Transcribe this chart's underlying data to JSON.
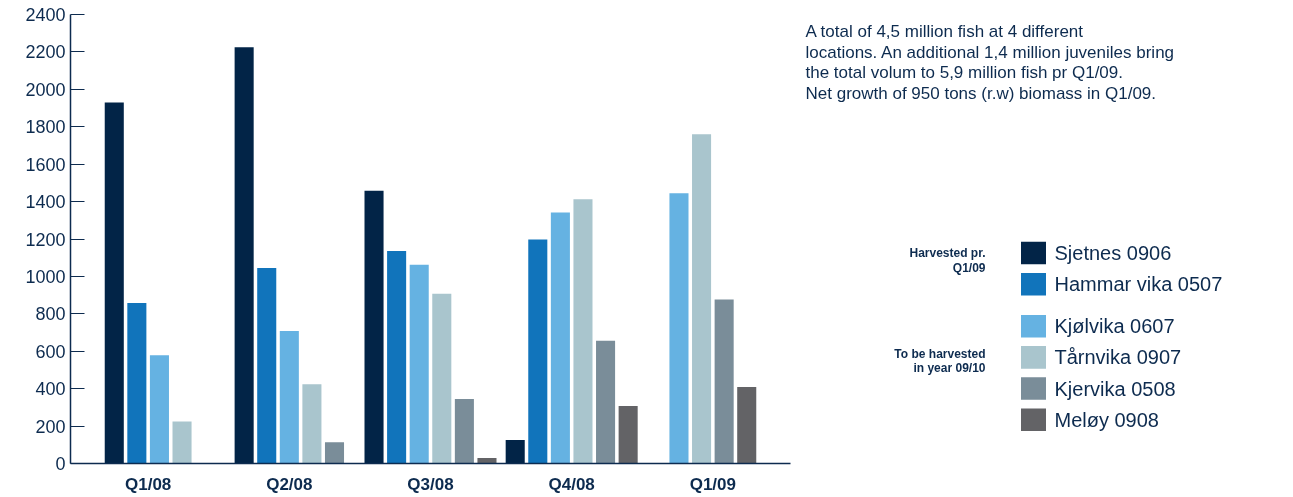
{
  "chart_data": {
    "type": "bar",
    "categories": [
      "Q1/08",
      "Q2/08",
      "Q3/08",
      "Q4/08",
      "Q1/09"
    ],
    "series": [
      {
        "name": "Sjetnes 0906",
        "color": "#022447",
        "values": [
          1930,
          2225,
          1458,
          125,
          null
        ]
      },
      {
        "name": "Hammar vika 0507",
        "color": "#1174bb",
        "values": [
          858,
          1045,
          1136,
          1197,
          null
        ]
      },
      {
        "name": "Kjølvika 0607",
        "color": "#65b2e2",
        "values": [
          579,
          708,
          1062,
          1342,
          1444
        ]
      },
      {
        "name": "Tårnvika 0907",
        "color": "#a9c5cd",
        "values": [
          225,
          424,
          908,
          1412,
          1760
        ]
      },
      {
        "name": "Kjervika 0508",
        "color": "#7a8d99",
        "values": [
          null,
          113,
          345,
          656,
          876
        ]
      },
      {
        "name": "Meløy 0908",
        "color": "#636366",
        "values": [
          null,
          null,
          29,
          307,
          409
        ]
      }
    ],
    "ylim": [
      0,
      2400
    ],
    "yticks": [
      0,
      200,
      400,
      600,
      800,
      1000,
      1200,
      1400,
      1600,
      1800,
      2000,
      2200,
      2400
    ],
    "grid": false,
    "legend": "right",
    "annotations": [
      "A total of 4,5 million fish at 4 different locations. An additional 1,4 million juveniles bring the total volum to 5,9 million fish pr Q1/09.",
      "Net growth of 950 tons (r.w) biomass in Q1/09.",
      "Harvested pr. Q1/09",
      "To be harvested in year 09/10"
    ]
  }
}
